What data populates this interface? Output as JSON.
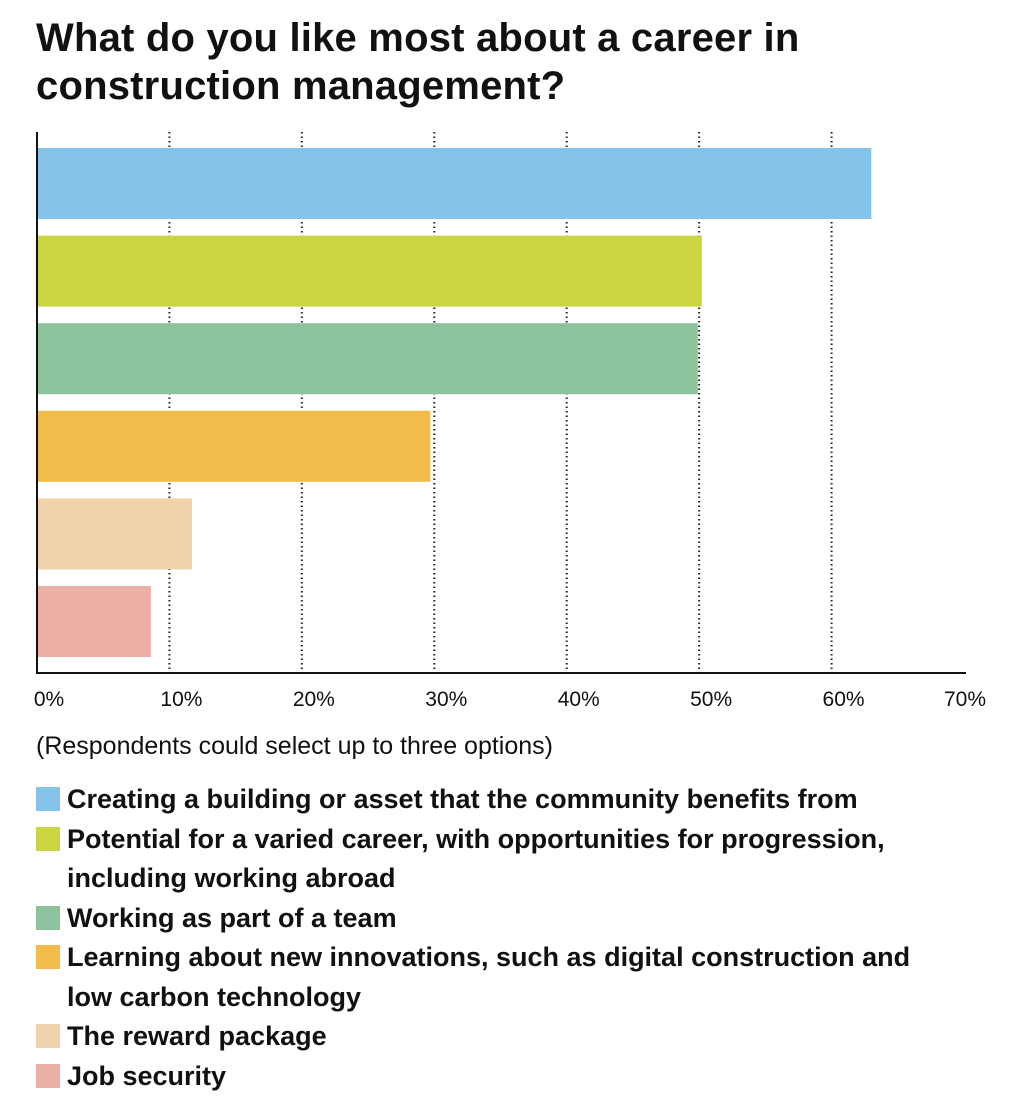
{
  "chart_data": {
    "type": "bar",
    "orientation": "horizontal",
    "title": "What do you like most about a career in construction management?",
    "note": "(Respondents could select up to three options)",
    "categories": [
      "Creating a building or asset that the community benefits from",
      "Potential for a varied career, with opportunities for progression, including working abroad",
      "Working as part of a team",
      "Learning about new innovations, such as digital construction and low carbon technology",
      "The reward package",
      "Job security"
    ],
    "values": [
      63,
      50.2,
      49.9,
      29.7,
      11.7,
      8.6
    ],
    "colors": [
      "#86c3ea",
      "#cbd443",
      "#8cc39c",
      "#f2bc4a",
      "#f0d3ab",
      "#ecafa5"
    ],
    "xlim": [
      0,
      70
    ],
    "xticks": [
      0,
      10,
      20,
      30,
      40,
      50,
      60,
      70
    ],
    "xtick_labels": [
      "0%",
      "10%",
      "20%",
      "30%",
      "40%",
      "50%",
      "60%",
      "70%"
    ],
    "grid": "vertical dotted",
    "legend_position": "bottom"
  }
}
